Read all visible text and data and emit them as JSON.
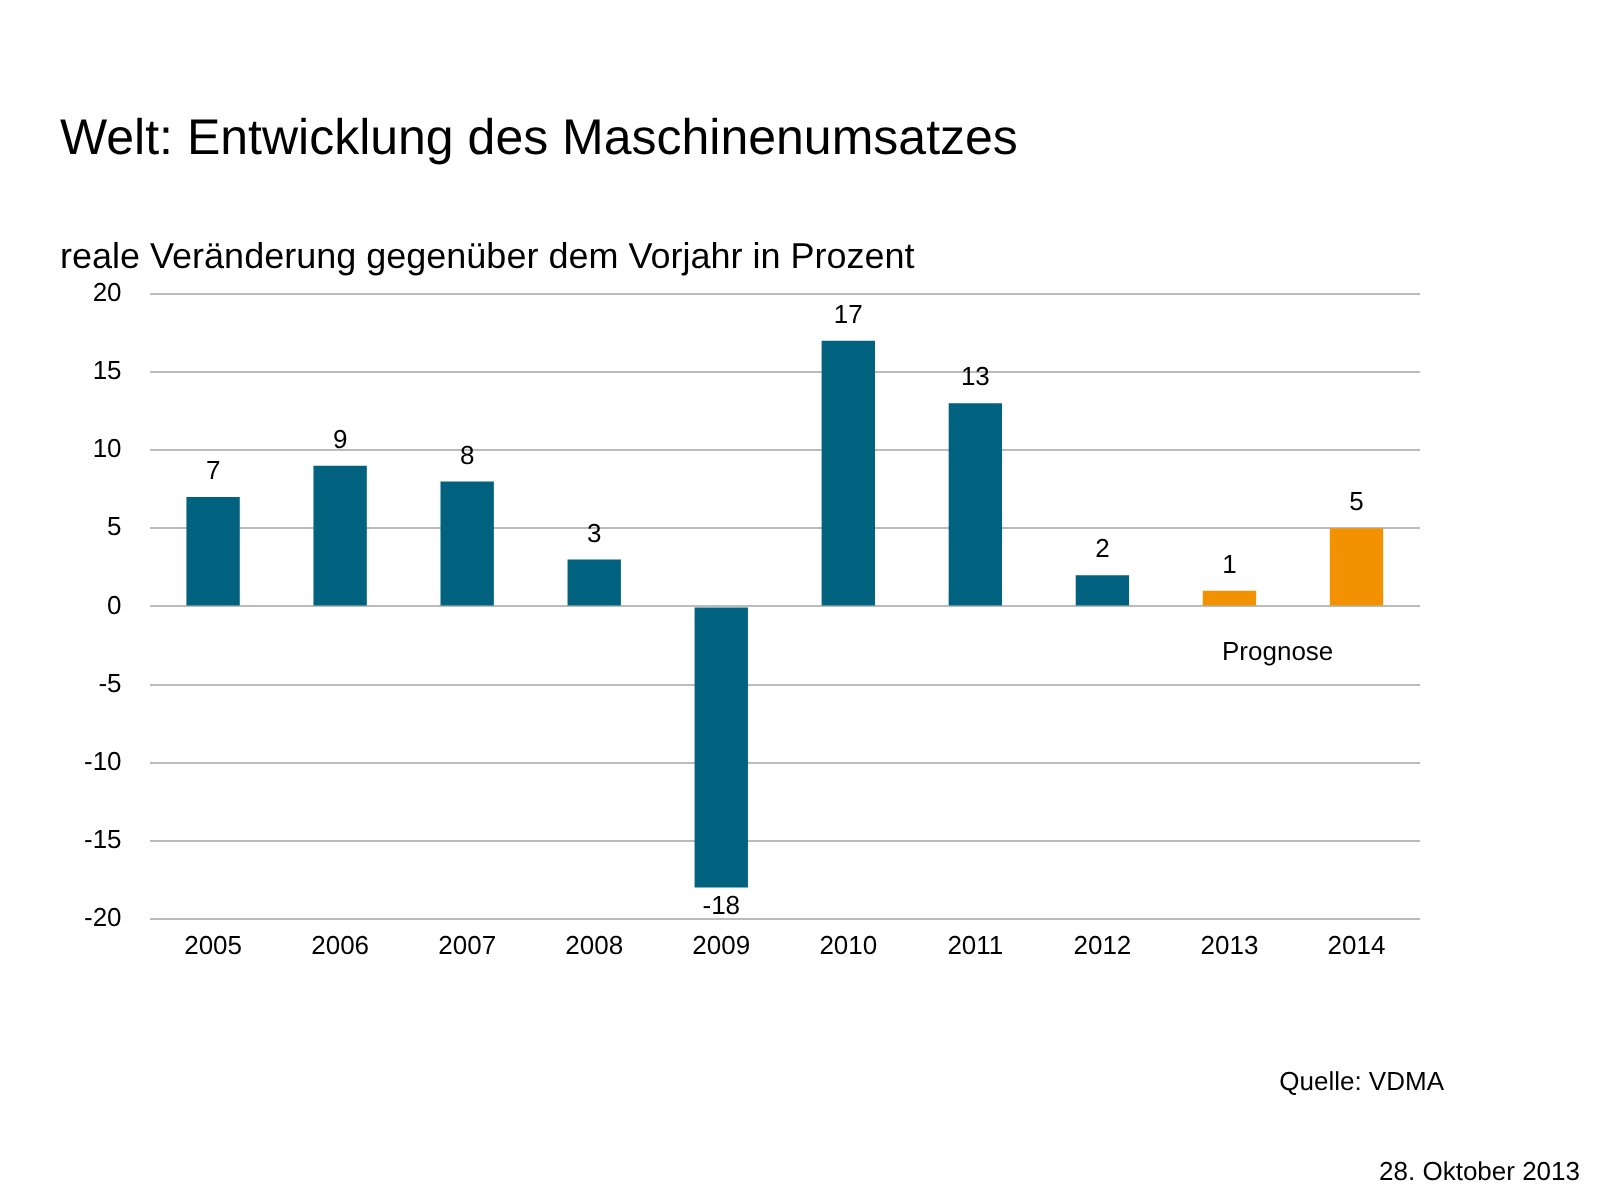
{
  "chart_data": {
    "type": "bar",
    "title": "Welt: Entwicklung des Maschinenumsatzes",
    "subtitle": "reale Veränderung gegenüber dem Vorjahr in Prozent",
    "categories": [
      "2005",
      "2006",
      "2007",
      "2008",
      "2009",
      "2010",
      "2011",
      "2012",
      "2013",
      "2014"
    ],
    "values": [
      7,
      9,
      8,
      3,
      -18,
      17,
      13,
      2,
      1,
      5
    ],
    "colors": [
      "#00627f",
      "#00627f",
      "#00627f",
      "#00627f",
      "#00627f",
      "#00627f",
      "#00627f",
      "#00627f",
      "#f39200",
      "#f39200"
    ],
    "ylim": [
      -20,
      20
    ],
    "yticks": [
      -20,
      -15,
      -10,
      -5,
      0,
      5,
      10,
      15,
      20
    ],
    "grid": "y",
    "data_labels": true,
    "annotations": [
      "Prognose",
      "Quelle: VDMA",
      "28. Oktober 2013"
    ]
  }
}
